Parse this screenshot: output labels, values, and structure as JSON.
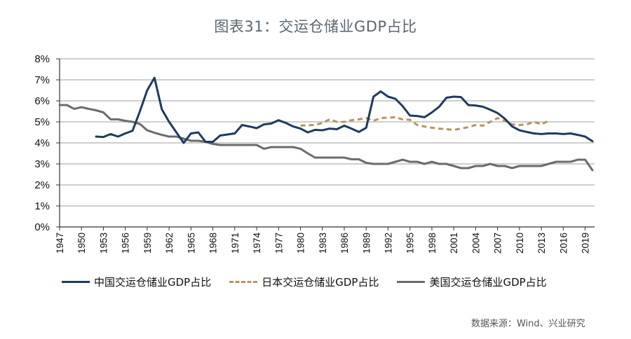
{
  "chart_data": {
    "type": "line",
    "title": "图表31：交运仓储业GDP占比",
    "xlabel": "",
    "ylabel": "",
    "ylim": [
      0,
      8
    ],
    "yticks": [
      "0%",
      "1%",
      "2%",
      "3%",
      "4%",
      "5%",
      "6%",
      "7%",
      "8%"
    ],
    "xlim": [
      1947,
      2020
    ],
    "xticks": [
      "1947",
      "1950",
      "1953",
      "1956",
      "1959",
      "1962",
      "1965",
      "1968",
      "1971",
      "1974",
      "1977",
      "1980",
      "1983",
      "1986",
      "1989",
      "1992",
      "1995",
      "1998",
      "2001",
      "2004",
      "2007",
      "2010",
      "2013",
      "2016",
      "2019"
    ],
    "grid": true,
    "legend_position": "bottom",
    "series": [
      {
        "name": "中国交运仓储业GDP占比",
        "color": "#1f3a5f",
        "style": "solid",
        "start_year": 1952,
        "values": [
          4.3,
          4.28,
          4.42,
          4.3,
          4.45,
          4.58,
          5.5,
          6.5,
          7.1,
          5.6,
          5.0,
          4.5,
          4.0,
          4.45,
          4.5,
          4.05,
          4.05,
          4.35,
          4.4,
          4.45,
          4.85,
          4.78,
          4.7,
          4.88,
          4.92,
          5.08,
          4.95,
          4.78,
          4.68,
          4.5,
          4.62,
          4.6,
          4.68,
          4.65,
          4.82,
          4.68,
          4.52,
          4.72,
          6.2,
          6.45,
          6.2,
          6.1,
          5.75,
          5.3,
          5.28,
          5.22,
          5.45,
          5.72,
          6.15,
          6.2,
          6.18,
          5.8,
          5.78,
          5.72,
          5.58,
          5.42,
          5.15,
          4.78,
          4.6,
          4.52,
          4.45,
          4.42,
          4.45,
          4.45,
          4.42,
          4.45,
          4.38,
          4.3,
          4.08
        ]
      },
      {
        "name": "日本交运仓储业GDP占比",
        "color": "#b8955e",
        "style": "dashed",
        "start_year": 1980,
        "values": [
          4.82,
          4.84,
          4.85,
          4.95,
          5.12,
          5.0,
          5.0,
          5.08,
          5.12,
          5.18,
          5.05,
          5.18,
          5.2,
          5.22,
          5.12,
          5.1,
          4.85,
          4.78,
          4.72,
          4.68,
          4.65,
          4.62,
          4.68,
          4.75,
          4.85,
          4.82,
          5.0,
          5.18,
          5.05,
          4.88,
          4.85,
          4.88,
          5.0,
          4.88,
          5.05
        ]
      },
      {
        "name": "美国交运仓储业GDP占比",
        "color": "#6b6b6b",
        "style": "solid",
        "start_year": 1947,
        "values": [
          5.8,
          5.8,
          5.62,
          5.7,
          5.62,
          5.55,
          5.45,
          5.12,
          5.12,
          5.05,
          5.0,
          4.9,
          4.6,
          4.48,
          4.38,
          4.3,
          4.3,
          4.2,
          4.1,
          4.1,
          4.05,
          3.95,
          3.9,
          3.9,
          3.9,
          3.9,
          3.9,
          3.9,
          3.72,
          3.8,
          3.8,
          3.8,
          3.8,
          3.72,
          3.5,
          3.3,
          3.3,
          3.3,
          3.3,
          3.3,
          3.22,
          3.22,
          3.05,
          3.0,
          3.0,
          3.0,
          3.1,
          3.2,
          3.1,
          3.1,
          3.0,
          3.1,
          3.0,
          3.0,
          2.9,
          2.8,
          2.8,
          2.9,
          2.9,
          3.0,
          2.9,
          2.9,
          2.8,
          2.9,
          2.9,
          2.9,
          2.9,
          3.0,
          3.1,
          3.1,
          3.1,
          3.2,
          3.2,
          2.7
        ]
      }
    ],
    "source": "数据来源：Wind、兴业研究"
  }
}
